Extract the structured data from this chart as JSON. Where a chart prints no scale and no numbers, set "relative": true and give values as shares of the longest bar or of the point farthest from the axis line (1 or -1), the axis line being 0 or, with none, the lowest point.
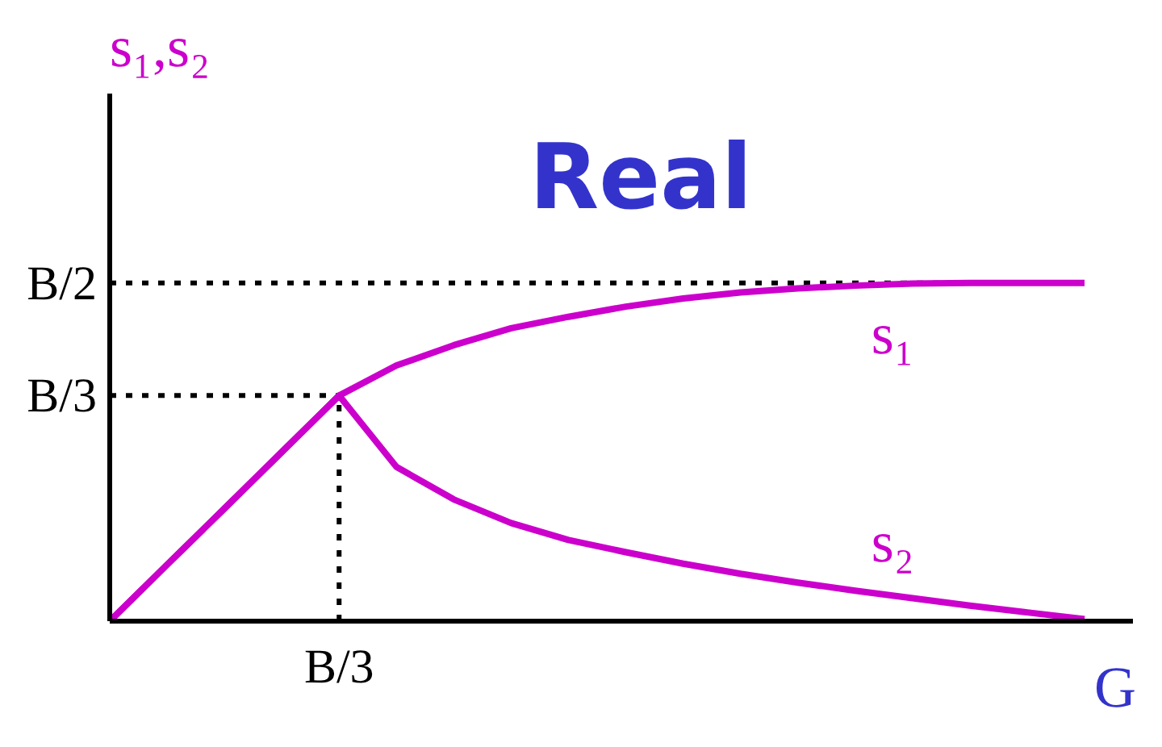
{
  "chart_data": {
    "type": "line",
    "title": "Real",
    "xlabel": "G",
    "ylabel": "s₁,s₂",
    "relative": true,
    "annotations": [
      "B/3"
    ],
    "categories": [
      null,
      null,
      null,
      null,
      null,
      null,
      null,
      null,
      null,
      null,
      null,
      null,
      null,
      null,
      null,
      null,
      null,
      null
    ],
    "series": [
      {
        "name": "s₁",
        "color": "#cc00cc",
        "values": [
          0,
          0.167,
          0.333,
          0.5,
          0.667,
          0.756,
          0.816,
          0.866,
          0.9,
          0.93,
          0.954,
          0.972,
          0.984,
          0.992,
          0.998,
          1,
          1,
          1
        ]
      },
      {
        "name": "s₂",
        "color": "#cc00cc",
        "values": [
          0,
          0.167,
          0.333,
          0.5,
          0.667,
          0.456,
          0.36,
          0.29,
          0.24,
          0.204,
          0.17,
          0.14,
          0.114,
          0.09,
          0.068,
          0.046,
          0.026,
          0.006
        ]
      }
    ],
    "ref_lines": [
      {
        "axis": "y",
        "value": 1,
        "label": "B/2",
        "line_style": "dotted",
        "color": "#000000"
      },
      {
        "axis": "y",
        "value": 0.667,
        "label": "B/3",
        "line_style": "dotted",
        "color": "#000000"
      }
    ],
    "grid": false,
    "legend": false,
    "marker": "none",
    "line_style": "solid"
  }
}
